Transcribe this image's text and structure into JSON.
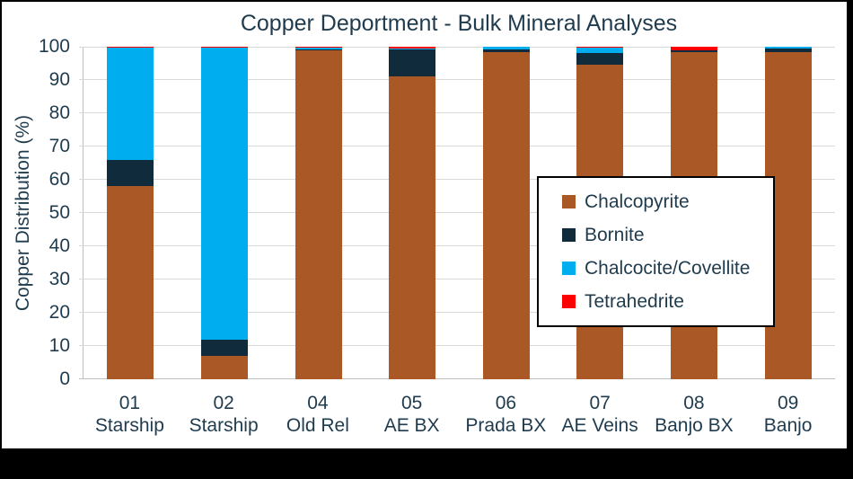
{
  "chart_data": {
    "type": "bar",
    "stacked": true,
    "title": "Copper Deportment - Bulk Mineral Analyses",
    "ylabel": "Copper Distribution (%)",
    "xlabel": "",
    "ylim": [
      0,
      100
    ],
    "ytick_interval": 10,
    "grid": true,
    "legend_position": "overlay-center-right",
    "categories": [
      {
        "code": "01",
        "name": "Starship"
      },
      {
        "code": "02",
        "name": "Starship"
      },
      {
        "code": "04",
        "name": "Old Rel"
      },
      {
        "code": "05",
        "name": "AE BX"
      },
      {
        "code": "06",
        "name": "Prada BX"
      },
      {
        "code": "07",
        "name": "AE Veins"
      },
      {
        "code": "08",
        "name": "Banjo BX"
      },
      {
        "code": "09",
        "name": "Banjo"
      }
    ],
    "series": [
      {
        "name": "Chalcopyrite",
        "color": "#AB5827",
        "values": [
          58,
          7,
          98.8,
          91,
          98.4,
          94.5,
          98.3,
          98.5
        ]
      },
      {
        "name": "Bornite",
        "color": "#0F2B3C",
        "values": [
          8,
          5,
          0.5,
          8.1,
          0.8,
          3.6,
          0.7,
          1.1
        ]
      },
      {
        "name": "Chalcocite/Covellite",
        "color": "#00AEEF",
        "values": [
          33.7,
          87.7,
          0.4,
          0.5,
          0.8,
          1.6,
          0,
          0.4
        ]
      },
      {
        "name": "Tetrahedrite",
        "color": "#FF0000",
        "values": [
          0.3,
          0.3,
          0.3,
          0.4,
          0,
          0.3,
          1.0,
          0
        ]
      }
    ]
  },
  "colors": {
    "text": "#1F3B4D",
    "gridline": "#D9D9D9",
    "axis_line": "#BFBFBF",
    "panel_bg": "#FFFFFF",
    "frame_bg": "#000000",
    "legend_border": "#000000"
  }
}
